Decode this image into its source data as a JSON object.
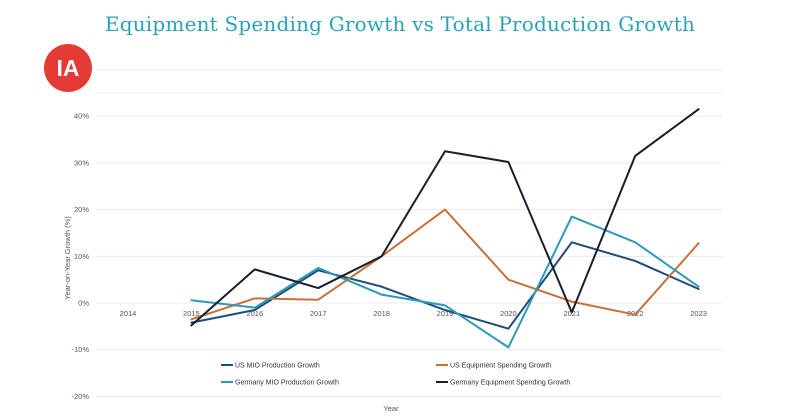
{
  "chart_data": {
    "type": "line",
    "title": "Equipment Spending Growth vs Total Production Growth",
    "logo_text": "IA",
    "xlabel": "Year",
    "ylabel": "Year-on-Year Growth (%)",
    "categories": [
      "2014",
      "2015",
      "2016",
      "2017",
      "2018",
      "2019",
      "2020",
      "2021",
      "2022",
      "2023"
    ],
    "y_ticks": [
      40,
      30,
      20,
      10,
      0,
      -10,
      -20
    ],
    "y_tick_labels": [
      "40%",
      "30%",
      "20%",
      "10%",
      "0%",
      "-10%",
      "-20%"
    ],
    "ylim": [
      -20,
      50
    ],
    "grid": true,
    "legend_position": "bottom",
    "series": [
      {
        "name": "US MIO Production Growth",
        "color": "#1f4e79",
        "values": [
          null,
          -4.2,
          -1.5,
          7,
          3.5,
          -1.5,
          -5.5,
          13,
          9,
          3
        ]
      },
      {
        "name": "US Equipment Spending Growth",
        "color": "#c8703a",
        "values": [
          null,
          -3.5,
          1,
          0.7,
          10,
          20,
          5,
          0.3,
          -2.5,
          12.8
        ]
      },
      {
        "name": "Germany MIO Production Growth",
        "color": "#2e9ab6",
        "values": [
          null,
          0.6,
          -1,
          7.5,
          1.8,
          -0.5,
          -9.5,
          18.5,
          13,
          3.5
        ]
      },
      {
        "name": "Germany Equipment Spending Growth",
        "color": "#1a1d2e",
        "values": [
          null,
          -4.8,
          7.2,
          3.2,
          10,
          32.5,
          30.2,
          -2,
          31.5,
          41.5
        ]
      }
    ]
  }
}
